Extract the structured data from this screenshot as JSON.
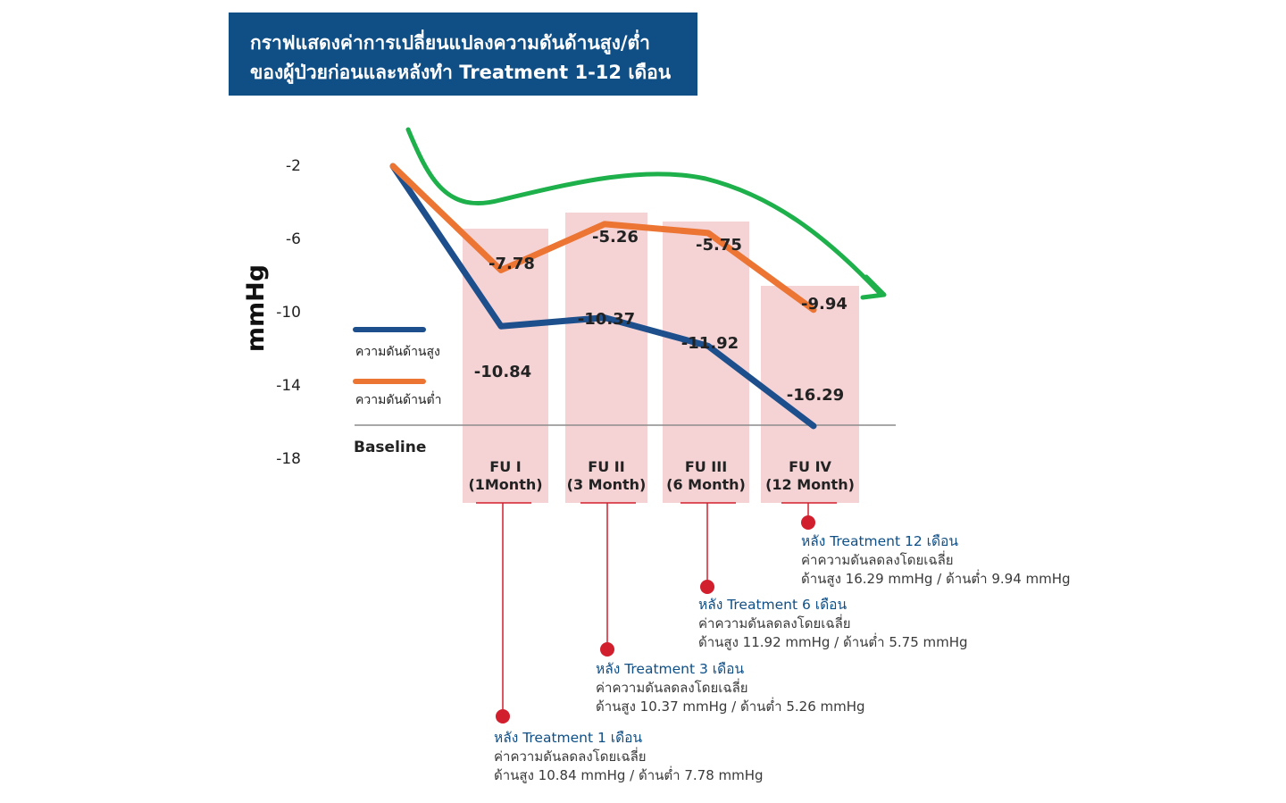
{
  "title": {
    "line1": "กราฟแสดงค่าการเปลี่ยนแปลงความดันด้านสูง/ต่ำ",
    "line2": "ของผู้ป่วยก่อนและหลังทำ Treatment 1-12 เดือน"
  },
  "colors": {
    "title_bg": "#0f4f86",
    "systolic": "#1d4f8c",
    "diastolic": "#ec7534",
    "trend_arrow": "#1db04b",
    "bar_fill": "#f5d3d5",
    "callout": "#d21f2d"
  },
  "chart_data": {
    "type": "line",
    "ylabel": "mmHg",
    "y_ticks": [
      "-2",
      "-6",
      "-10",
      "-14",
      "-18"
    ],
    "ylim": [
      -18,
      -2
    ],
    "baseline_label": "Baseline",
    "categories": [
      {
        "line1": "FU I",
        "line2": "(1Month)"
      },
      {
        "line1": "FU II",
        "line2": "(3 Month)"
      },
      {
        "line1": "FU III",
        "line2": "(6 Month)"
      },
      {
        "line1": "FU IV",
        "line2": "(12 Month)"
      }
    ],
    "series": [
      {
        "name": "ความดันด้านสูง",
        "values": [
          -10.84,
          -10.37,
          -11.92,
          -16.29
        ],
        "labels": [
          "-10.84",
          "-10.37",
          "-11.92",
          "-16.29"
        ]
      },
      {
        "name": "ความดันด้านต่ำ",
        "values": [
          -7.78,
          -5.26,
          -5.75,
          -9.94
        ],
        "labels": [
          "-7.78",
          "-5.26",
          "-5.75",
          "-9.94"
        ]
      }
    ]
  },
  "notes": [
    {
      "title": "หลัง Treatment 1 เดือน",
      "line1": "ค่าความดันลดลงโดยเฉลี่ย",
      "line2": "ด้านสูง 10.84 mmHg / ด้านต่ำ 7.78 mmHg"
    },
    {
      "title": "หลัง Treatment 3 เดือน",
      "line1": "ค่าความดันลดลงโดยเฉลี่ย",
      "line2": "ด้านสูง 10.37 mmHg / ด้านต่ำ 5.26 mmHg"
    },
    {
      "title": "หลัง Treatment 6 เดือน",
      "line1": "ค่าความดันลดลงโดยเฉลี่ย",
      "line2": "ด้านสูง 11.92 mmHg / ด้านต่ำ 5.75 mmHg"
    },
    {
      "title": "หลัง Treatment 12 เดือน",
      "line1": "ค่าความดันลดลงโดยเฉลี่ย",
      "line2": "ด้านสูง 16.29 mmHg / ด้านต่ำ 9.94 mmHg"
    }
  ]
}
